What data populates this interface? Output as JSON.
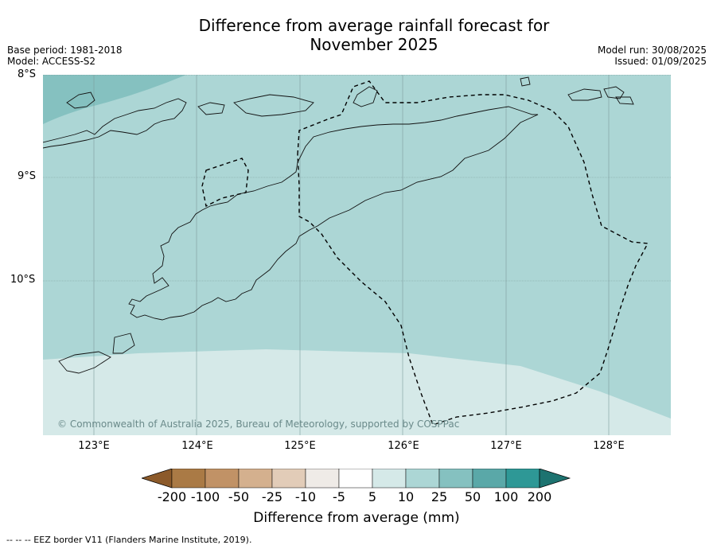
{
  "title_line1": "Difference from average rainfall forecast for",
  "title_line2": "November 2025",
  "base_period": "Base period: 1981-2018",
  "model": "Model: ACCESS-S2",
  "model_run": "Model run: 30/08/2025",
  "issued": "Issued: 01/09/2025",
  "latitude_labels": [
    "8°S",
    "9°S",
    "10°S"
  ],
  "longitude_labels": [
    "123°E",
    "124°E",
    "125°E",
    "126°E",
    "127°E",
    "128°E"
  ],
  "copyright": "© Commonwealth of Australia 2025, Bureau of Meteorology, supported by COSPPac",
  "legend": {
    "title": "Difference from average (mm)",
    "tick_labels": [
      "-200",
      "-100",
      "-50",
      "-25",
      "-10",
      "-5",
      "5",
      "10",
      "25",
      "50",
      "100",
      "200"
    ],
    "colors": [
      "#8c5a2a",
      "#aa7a45",
      "#c19266",
      "#d4b08e",
      "#e2ccb8",
      "#efebe7",
      "#ffffff",
      "#d5e9e8",
      "#acd6d5",
      "#85c1c0",
      "#5aa8a8",
      "#2e9896",
      "#1d7370"
    ]
  },
  "eez_note": "-- -- -- EEZ border V11 (Flanders Marine Institute, 2019)."
}
